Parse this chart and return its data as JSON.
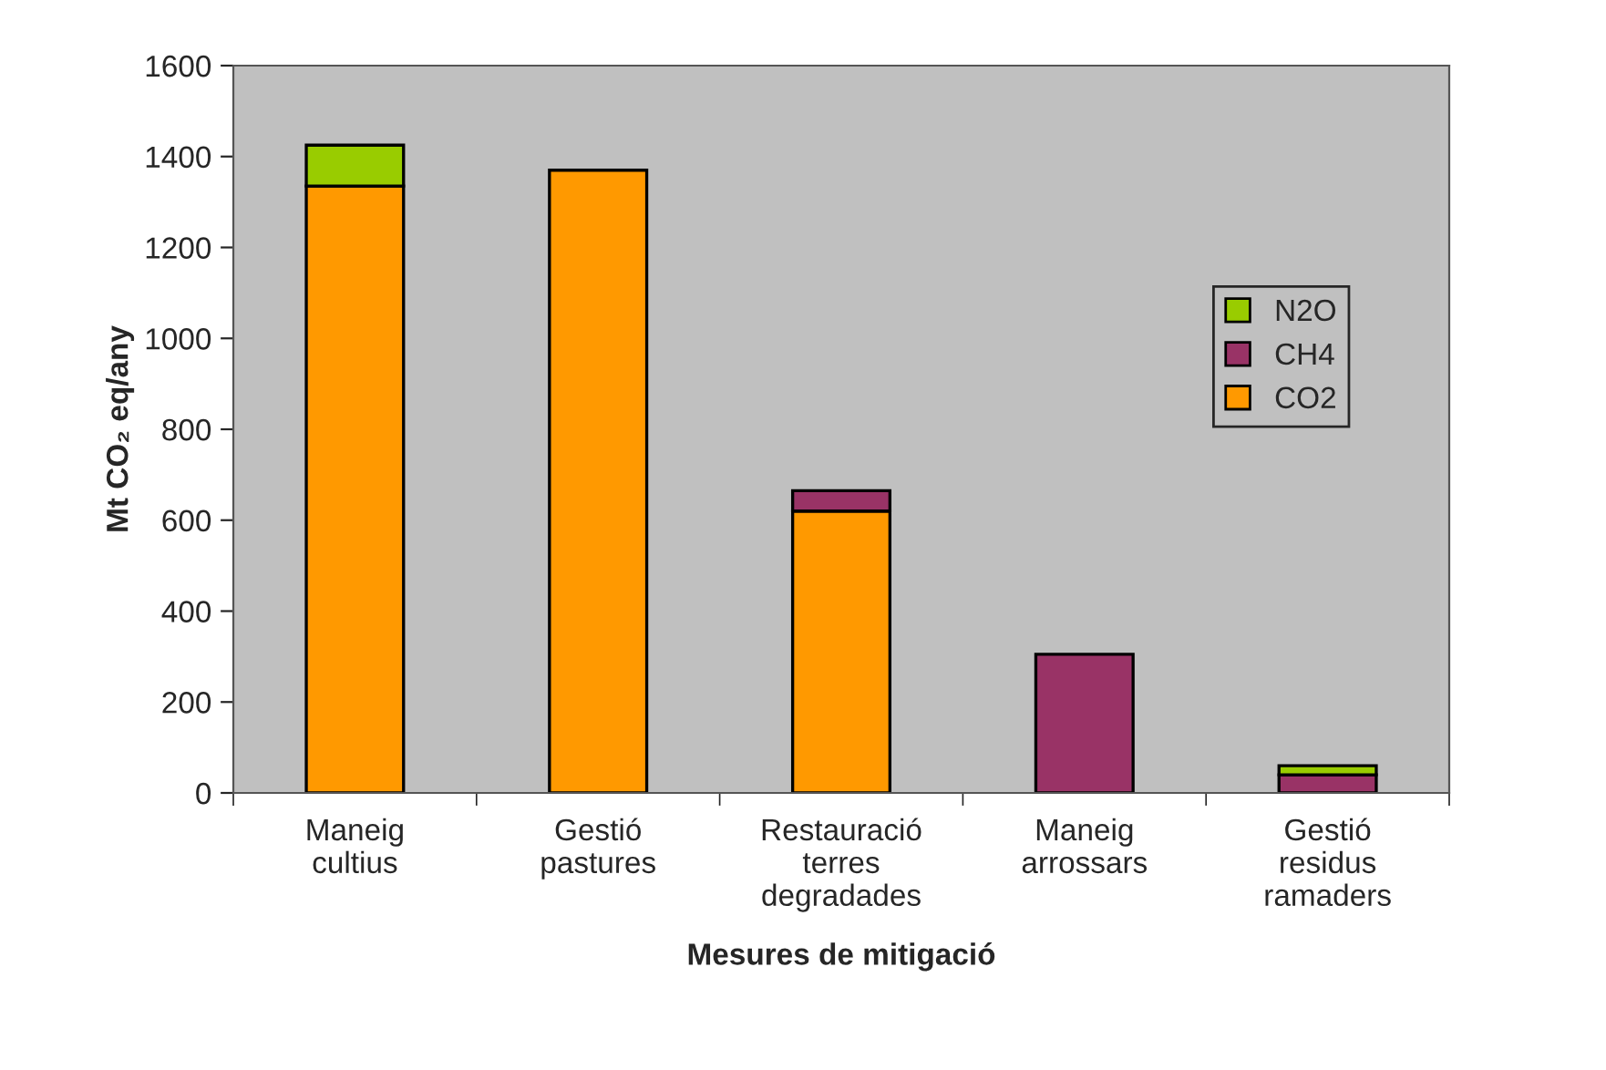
{
  "chart_data": {
    "type": "bar",
    "stacked": true,
    "xlabel": "Mesures de mitigació",
    "ylabel": "Mt CO₂ eq/any",
    "categories": [
      "Maneig\ncultius",
      "Gestió\npastures",
      "Restauració\nterres\ndegradades",
      "Maneig\narrossars",
      "Gestió\nresidus\nramaders"
    ],
    "series": [
      {
        "name": "CO2",
        "color": "#ff9900",
        "values": [
          1335,
          1370,
          620,
          0,
          0
        ]
      },
      {
        "name": "CH4",
        "color": "#993366",
        "values": [
          0,
          0,
          45,
          305,
          40
        ]
      },
      {
        "name": "N2O",
        "color": "#99cc00",
        "values": [
          90,
          0,
          0,
          0,
          20
        ]
      }
    ],
    "ylim": [
      0,
      1600
    ],
    "yticks": [
      0,
      200,
      400,
      600,
      800,
      1000,
      1200,
      1400,
      1600
    ],
    "grid": false,
    "legend": "right"
  }
}
